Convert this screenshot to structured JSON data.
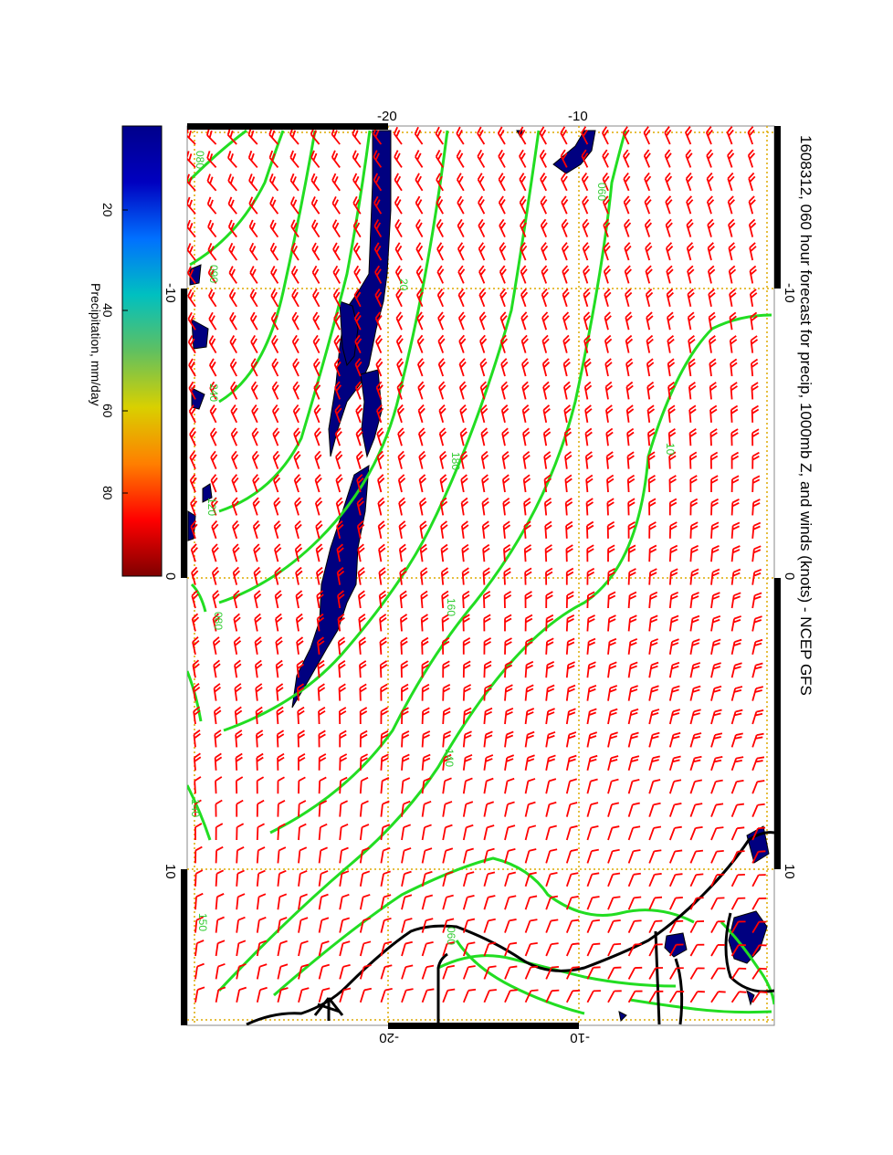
{
  "title": "1608312, 060 hour forecast for precip, 1000mb Z, and winds (knots) - NCEP GFS",
  "colorbar": {
    "label": "Precipitation, mm/day",
    "ticks": [
      "20",
      "40",
      "60",
      "80"
    ],
    "colors": [
      "#7f0000",
      "#ff0000",
      "#ff7f00",
      "#d9d000",
      "#60c060",
      "#00c0c0",
      "#0070ff",
      "#0000c0",
      "#00008b"
    ]
  },
  "axes": {
    "lon_ticks_left": [
      "-10",
      "0",
      "10"
    ],
    "lon_ticks_right": [
      "-10",
      "0",
      "10"
    ],
    "lat_ticks_top": [
      "-20",
      "-10"
    ],
    "lat_ticks_bottom": [
      "-20",
      "-10"
    ]
  },
  "contour_labels": [
    "080",
    "090",
    "240",
    "120",
    "080",
    "060",
    "20",
    "180",
    "160",
    "140",
    "10",
    "140",
    "150",
    "060"
  ],
  "colors": {
    "contour": "#22dd22",
    "barb": "#ff0000",
    "precip": "#000080",
    "coast": "#000000",
    "grid": "#ddaa00"
  },
  "map_data": {
    "projection": "rotated 90 degrees",
    "grid_lines": {
      "lon": [
        -10,
        0,
        10
      ],
      "lat": [
        -20,
        -10
      ]
    }
  }
}
